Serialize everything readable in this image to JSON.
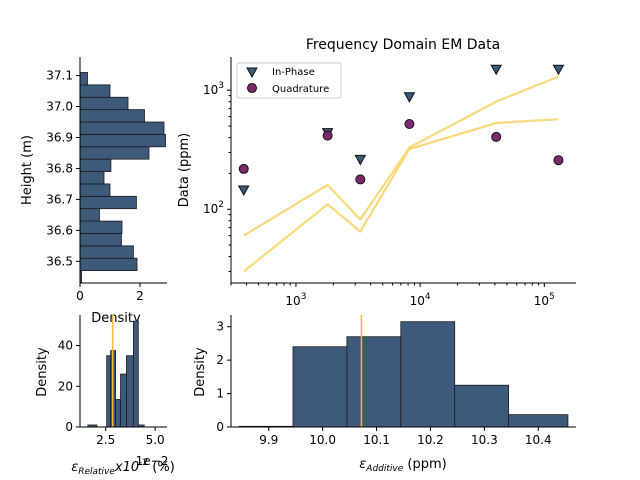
{
  "colors": {
    "bar": "#3e5a7a",
    "inphase": "#3e5a7a",
    "quadrature": "#7b2a6e",
    "model": "#f9d97a",
    "vline": "#f7b731"
  },
  "chart_data": [
    {
      "id": "height_hist",
      "type": "bar",
      "orientation": "horizontal",
      "xlabel": "Density",
      "ylabel": "Height (m)",
      "xlim": [
        0,
        2.9
      ],
      "ylim": [
        36.43,
        37.16
      ],
      "xticks": [
        "0",
        "2"
      ],
      "xtick_values": [
        0,
        2
      ],
      "yticks": [
        "36.5",
        "36.6",
        "36.7",
        "36.8",
        "36.9",
        "37.0",
        "37.1"
      ],
      "ytick_values": [
        36.5,
        36.6,
        36.7,
        36.8,
        36.9,
        37.0,
        37.1
      ],
      "bins": [
        {
          "lo": 36.43,
          "hi": 36.47,
          "value": 0.05
        },
        {
          "lo": 36.47,
          "hi": 36.51,
          "value": 1.9
        },
        {
          "lo": 36.51,
          "hi": 36.55,
          "value": 1.78
        },
        {
          "lo": 36.55,
          "hi": 36.59,
          "value": 1.38
        },
        {
          "lo": 36.59,
          "hi": 36.63,
          "value": 1.4
        },
        {
          "lo": 36.63,
          "hi": 36.67,
          "value": 0.65
        },
        {
          "lo": 36.67,
          "hi": 36.71,
          "value": 1.88
        },
        {
          "lo": 36.71,
          "hi": 36.75,
          "value": 1.0
        },
        {
          "lo": 36.75,
          "hi": 36.79,
          "value": 0.8
        },
        {
          "lo": 36.79,
          "hi": 36.83,
          "value": 1.03
        },
        {
          "lo": 36.83,
          "hi": 36.87,
          "value": 2.3
        },
        {
          "lo": 36.87,
          "hi": 36.91,
          "value": 2.85
        },
        {
          "lo": 36.91,
          "hi": 36.95,
          "value": 2.8
        },
        {
          "lo": 36.95,
          "hi": 36.99,
          "value": 2.15
        },
        {
          "lo": 36.99,
          "hi": 37.03,
          "value": 1.6
        },
        {
          "lo": 37.03,
          "hi": 37.07,
          "value": 1.0
        },
        {
          "lo": 37.07,
          "hi": 37.11,
          "value": 0.25
        }
      ]
    },
    {
      "id": "em_data",
      "type": "scatter",
      "title": "Frequency Domain EM Data",
      "xlabel": "",
      "ylabel": "Data (ppm)",
      "xscale": "log",
      "yscale": "log",
      "xlim": [
        300,
        180000
      ],
      "ylim": [
        24,
        1900
      ],
      "xticks": [
        {
          "base": "10",
          "exp": "3",
          "value": 1000
        },
        {
          "base": "10",
          "exp": "4",
          "value": 10000
        },
        {
          "base": "10",
          "exp": "5",
          "value": 100000
        }
      ],
      "yticks": [
        {
          "base": "10",
          "exp": "2",
          "value": 100
        },
        {
          "base": "10",
          "exp": "3",
          "value": 1000
        }
      ],
      "legend_position": "top-left",
      "series": [
        {
          "name": "In-Phase",
          "marker": "triangle-down",
          "x": [
            380,
            1800,
            3300,
            8200,
            41000,
            130000
          ],
          "y": [
            145,
            440,
            262,
            880,
            1500,
            1500
          ]
        },
        {
          "name": "Quadrature",
          "marker": "circle",
          "x": [
            380,
            1800,
            3300,
            8200,
            41000,
            130000
          ],
          "y": [
            218,
            415,
            178,
            520,
            405,
            258
          ]
        }
      ],
      "model_lines": [
        {
          "x": [
            380,
            1800,
            3300,
            8200,
            41000,
            130000
          ],
          "y": [
            60,
            160,
            82,
            330,
            800,
            1300
          ]
        },
        {
          "x": [
            380,
            1800,
            3300,
            8200,
            41000,
            130000
          ],
          "y": [
            30,
            110,
            65,
            320,
            530,
            570
          ]
        }
      ]
    },
    {
      "id": "relative_hist",
      "type": "bar",
      "xlabel_symbol": "ε",
      "xlabel_subscript": "Relative",
      "xlabel_main": "x10",
      "xlabel_sup": "-2",
      "xlabel_unit": "(%)",
      "offset_text": "1e−2",
      "ylabel": "Density",
      "xlim": [
        1.2,
        5.6
      ],
      "ylim": [
        0,
        55
      ],
      "xticks": [
        "2.5",
        "5.0"
      ],
      "xtick_values": [
        2.5,
        5.0
      ],
      "yticks": [
        "0",
        "20",
        "40"
      ],
      "ytick_values": [
        0,
        20,
        40
      ],
      "vline": 2.85,
      "bins": [
        {
          "lo": 1.6,
          "hi": 2.05,
          "value": 1
        },
        {
          "lo": 2.05,
          "hi": 2.55,
          "value": 0
        },
        {
          "lo": 2.55,
          "hi": 2.75,
          "value": 35
        },
        {
          "lo": 2.75,
          "hi": 3.0,
          "value": 37.5
        },
        {
          "lo": 3.0,
          "hi": 3.25,
          "value": 13.5
        },
        {
          "lo": 3.25,
          "hi": 3.55,
          "value": 26
        },
        {
          "lo": 3.55,
          "hi": 3.9,
          "value": 35
        },
        {
          "lo": 3.9,
          "hi": 4.15,
          "value": 52
        },
        {
          "lo": 4.15,
          "hi": 4.45,
          "value": 1
        }
      ]
    },
    {
      "id": "additive_hist",
      "type": "bar",
      "xlabel_symbol": "ε",
      "xlabel_subscript": "Additive",
      "xlabel_unit": "(ppm)",
      "ylabel": "Density",
      "xlim": [
        9.83,
        10.47
      ],
      "ylim": [
        0,
        3.35
      ],
      "xticks": [
        "9.9",
        "10.0",
        "10.1",
        "10.2",
        "10.3",
        "10.4"
      ],
      "xtick_values": [
        9.9,
        10.0,
        10.1,
        10.2,
        10.3,
        10.4
      ],
      "yticks": [
        "0",
        "1",
        "2",
        "3"
      ],
      "ytick_values": [
        0,
        1,
        2,
        3
      ],
      "vline": 10.072,
      "bins": [
        {
          "lo": 9.845,
          "hi": 9.945,
          "value": 0.02
        },
        {
          "lo": 9.945,
          "hi": 10.045,
          "value": 2.4
        },
        {
          "lo": 10.045,
          "hi": 10.145,
          "value": 2.7
        },
        {
          "lo": 10.145,
          "hi": 10.245,
          "value": 3.15
        },
        {
          "lo": 10.245,
          "hi": 10.345,
          "value": 1.25
        },
        {
          "lo": 10.345,
          "hi": 10.455,
          "value": 0.37
        }
      ]
    }
  ]
}
